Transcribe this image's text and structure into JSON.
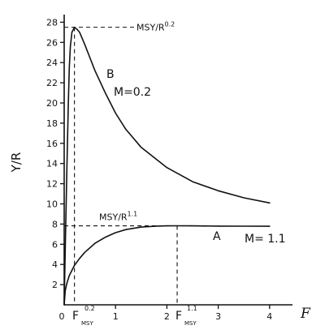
{
  "chart_data": {
    "type": "line",
    "title": "",
    "xlabel": "F",
    "ylabel": "Y/R",
    "xlim": [
      0,
      4.2
    ],
    "ylim": [
      0,
      28.5
    ],
    "x_ticks": [
      "0",
      "1",
      "2",
      "3",
      "4"
    ],
    "y_ticks": [
      "2",
      "4",
      "6",
      "8",
      "10",
      "12",
      "14",
      "16",
      "18",
      "20",
      "22",
      "24",
      "26",
      "28"
    ],
    "grid": false,
    "legend": "none",
    "series": [
      {
        "name": "B",
        "label": "M=0.2",
        "x": [
          0,
          0.02,
          0.05,
          0.08,
          0.1,
          0.12,
          0.15,
          0.2,
          0.25,
          0.3,
          0.4,
          0.5,
          0.6,
          0.8,
          1.0,
          1.2,
          1.5,
          2.0,
          2.5,
          3.0,
          3.5,
          4.0
        ],
        "y": [
          0,
          5.5,
          13,
          20,
          23.5,
          25.6,
          27,
          27.5,
          27.3,
          27,
          25.8,
          24.5,
          23.2,
          21,
          19,
          17.4,
          15.6,
          13.6,
          12.2,
          11.3,
          10.6,
          10.1
        ]
      },
      {
        "name": "A",
        "label": "M=1.1",
        "x": [
          0,
          0.02,
          0.05,
          0.1,
          0.2,
          0.3,
          0.4,
          0.6,
          0.8,
          1.0,
          1.2,
          1.5,
          1.8,
          2.0,
          2.2,
          2.5,
          3.0,
          3.5,
          4.0
        ],
        "y": [
          0,
          1.4,
          2.1,
          2.9,
          3.9,
          4.6,
          5.2,
          6.1,
          6.7,
          7.15,
          7.45,
          7.7,
          7.8,
          7.82,
          7.83,
          7.82,
          7.8,
          7.79,
          7.78
        ]
      }
    ],
    "reference_lines": [
      {
        "label_text": "MSY/R",
        "label_sup": "0.2",
        "y": 27.5,
        "x": 0.2
      },
      {
        "label_text": "MSY/R",
        "label_sup": "1.1",
        "y": 7.83,
        "x": 2.2
      }
    ],
    "annotations": {
      "curve_b_letter": "B",
      "curve_b_m": "M=0.2",
      "curve_a_letter": "A",
      "curve_a_m": "M= 1.1",
      "fmsy_low_base": "F",
      "fmsy_low_sup": "0.2",
      "fmsy_low_sub": "MSY",
      "fmsy_high_base": "F",
      "fmsy_high_sup": "1.1",
      "fmsy_high_sub": "MSY"
    }
  }
}
